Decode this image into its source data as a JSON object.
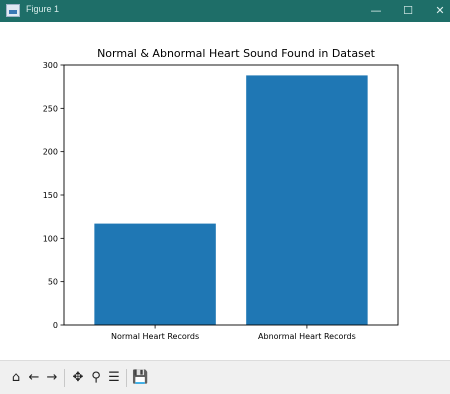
{
  "window": {
    "title": "Figure 1",
    "minimize_icon": "minimize-icon",
    "maximize_icon": "maximize-icon",
    "close_icon": "close-icon",
    "titlebar_color": "#1e6e68"
  },
  "toolbar": {
    "icons": [
      "home-icon",
      "back-icon",
      "forward-icon",
      "pan-icon",
      "zoom-icon",
      "configure-subplots-icon",
      "save-icon"
    ]
  },
  "chart_data": {
    "type": "bar",
    "title": "Normal & Abnormal Heart Sound Found in Dataset",
    "xlabel": "",
    "ylabel": "",
    "categories": [
      "Normal Heart Records",
      "Abnormal Heart Records"
    ],
    "values": [
      117,
      288
    ],
    "ylim": [
      0,
      300
    ],
    "yticks": [
      0,
      50,
      100,
      150,
      200,
      250,
      300
    ],
    "bar_color": "#1f77b4",
    "grid": false
  }
}
